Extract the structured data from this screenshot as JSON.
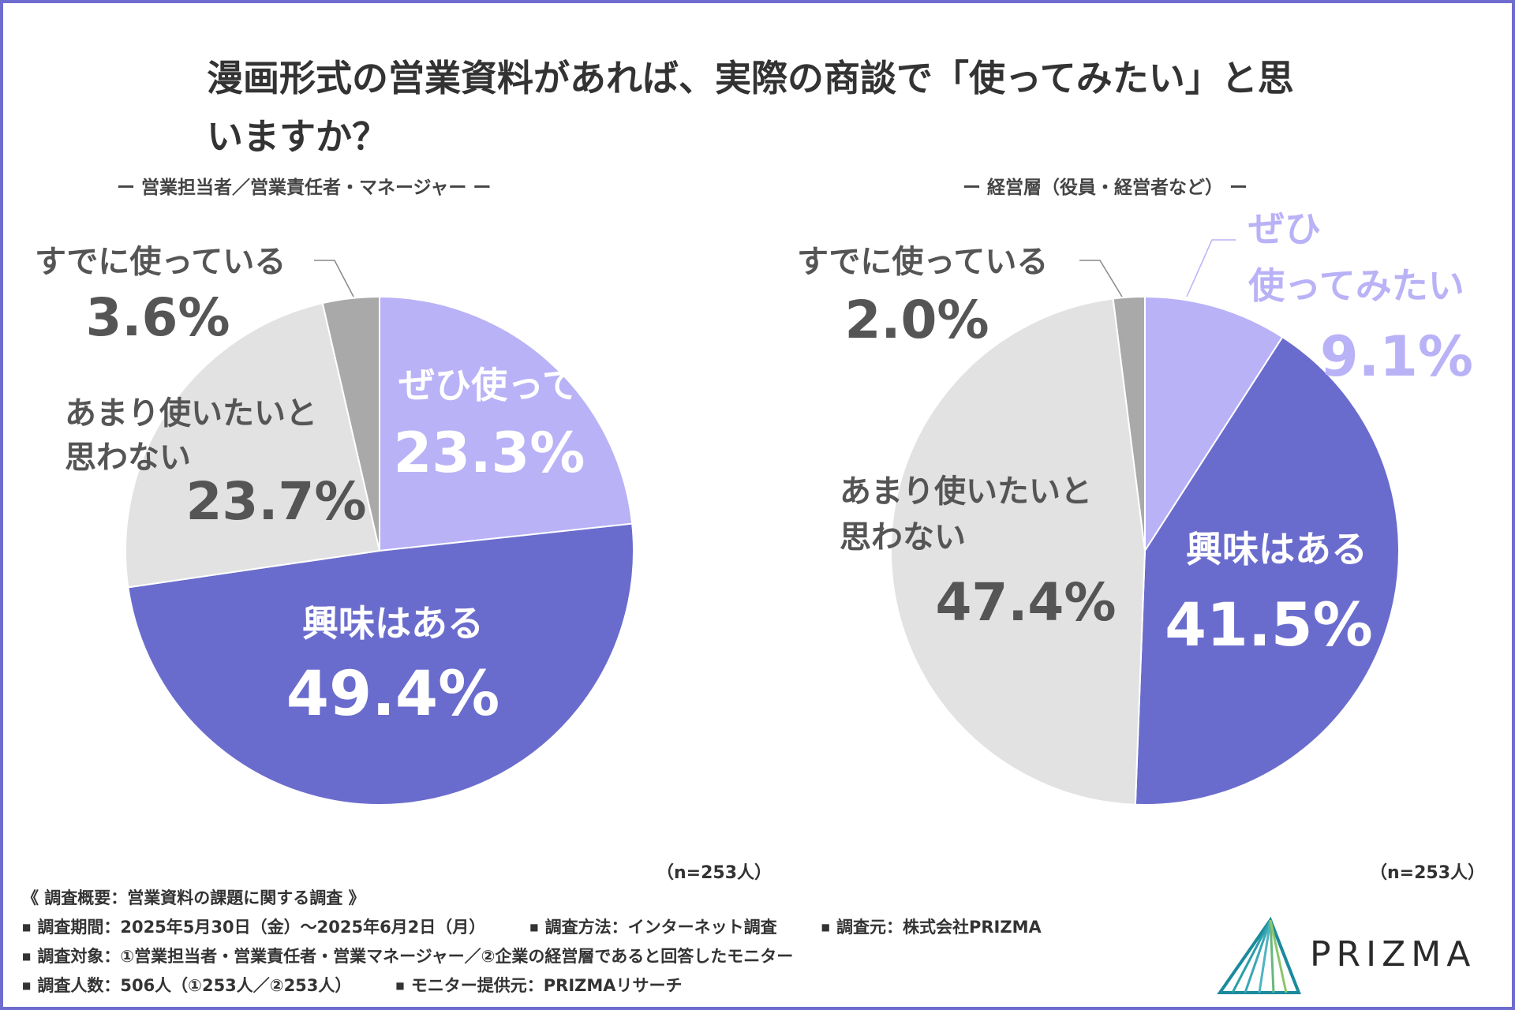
{
  "title": "漫画形式の営業資料があれば、実際の商談で「使ってみたい」と思いますか？",
  "colors": {
    "frame": "#6e6ccf",
    "want_to_use": "#b9b2f7",
    "interested": "#6a6ccd",
    "not_really": "#e2e2e2",
    "already": "#a9a9a9",
    "label_dark": "#555555",
    "label_white": "#ffffff"
  },
  "chart_data": [
    {
      "type": "pie",
      "title": "ー 営業担当者／営業責任者・マネージャー ー",
      "n_note": "（n=253人）",
      "slices": [
        {
          "label": "ぜひ使ってみたい",
          "value": 23.3,
          "display": "23.3%",
          "color": "#b9b2f7"
        },
        {
          "label": "興味はある",
          "value": 49.4,
          "display": "49.4%",
          "color": "#6a6ccd"
        },
        {
          "label": "あまり使いたいと思わない",
          "value": 23.7,
          "display": "23.7%",
          "color": "#e2e2e2"
        },
        {
          "label": "すでに使っている",
          "value": 3.6,
          "display": "3.6%",
          "color": "#a9a9a9"
        }
      ]
    },
    {
      "type": "pie",
      "title": "ー 経営層（役員・経営者など） ー",
      "n_note": "（n=253人）",
      "slices": [
        {
          "label": "ぜひ使ってみたい",
          "value": 9.1,
          "display": "9.1%",
          "color": "#b9b2f7"
        },
        {
          "label": "興味はある",
          "value": 41.5,
          "display": "41.5%",
          "color": "#6a6ccd"
        },
        {
          "label": "あまり使いたいと思わない",
          "value": 47.4,
          "display": "47.4%",
          "color": "#e2e2e2"
        },
        {
          "label": "すでに使っている",
          "value": 2.0,
          "display": "2.0%",
          "color": "#a9a9a9"
        }
      ]
    }
  ],
  "labels": {
    "left": {
      "want_line1": "ぜひ使ってみたい",
      "want_value": "23.3%",
      "interested_line1": "興味はある",
      "interested_value": "49.4%",
      "notreally_line1": "あまり使いたいと",
      "notreally_line2": "思わない",
      "notreally_value": "23.7%",
      "already_line1": "すでに使っている",
      "already_value": "3.6%"
    },
    "right": {
      "want_line1": "ぜひ",
      "want_line2": "使ってみたい",
      "want_value": "9.1%",
      "interested_line1": "興味はある",
      "interested_value": "41.5%",
      "notreally_line1": "あまり使いたいと",
      "notreally_line2": "思わない",
      "notreally_value": "47.4%",
      "already_line1": "すでに使っている",
      "already_value": "2.0%"
    }
  },
  "survey": {
    "heading": "《 調査概要：営業資料の課題に関する調査 》",
    "period": "調査期間：2025年5月30日（金）～2025年6月2日（月）",
    "method": "調査方法：インターネット調査",
    "source": "調査元：株式会社PRIZMA",
    "target": "調査対象：①営業担当者・営業責任者・営業マネージャー／②企業の経営層であると回答したモニター",
    "count": "調査人数：506人（①253人／②253人）",
    "provider": "モニター提供元：PRIZMAリサーチ"
  },
  "logo": {
    "text": "PRIZMA",
    "icon": "prism-triangle-icon"
  }
}
